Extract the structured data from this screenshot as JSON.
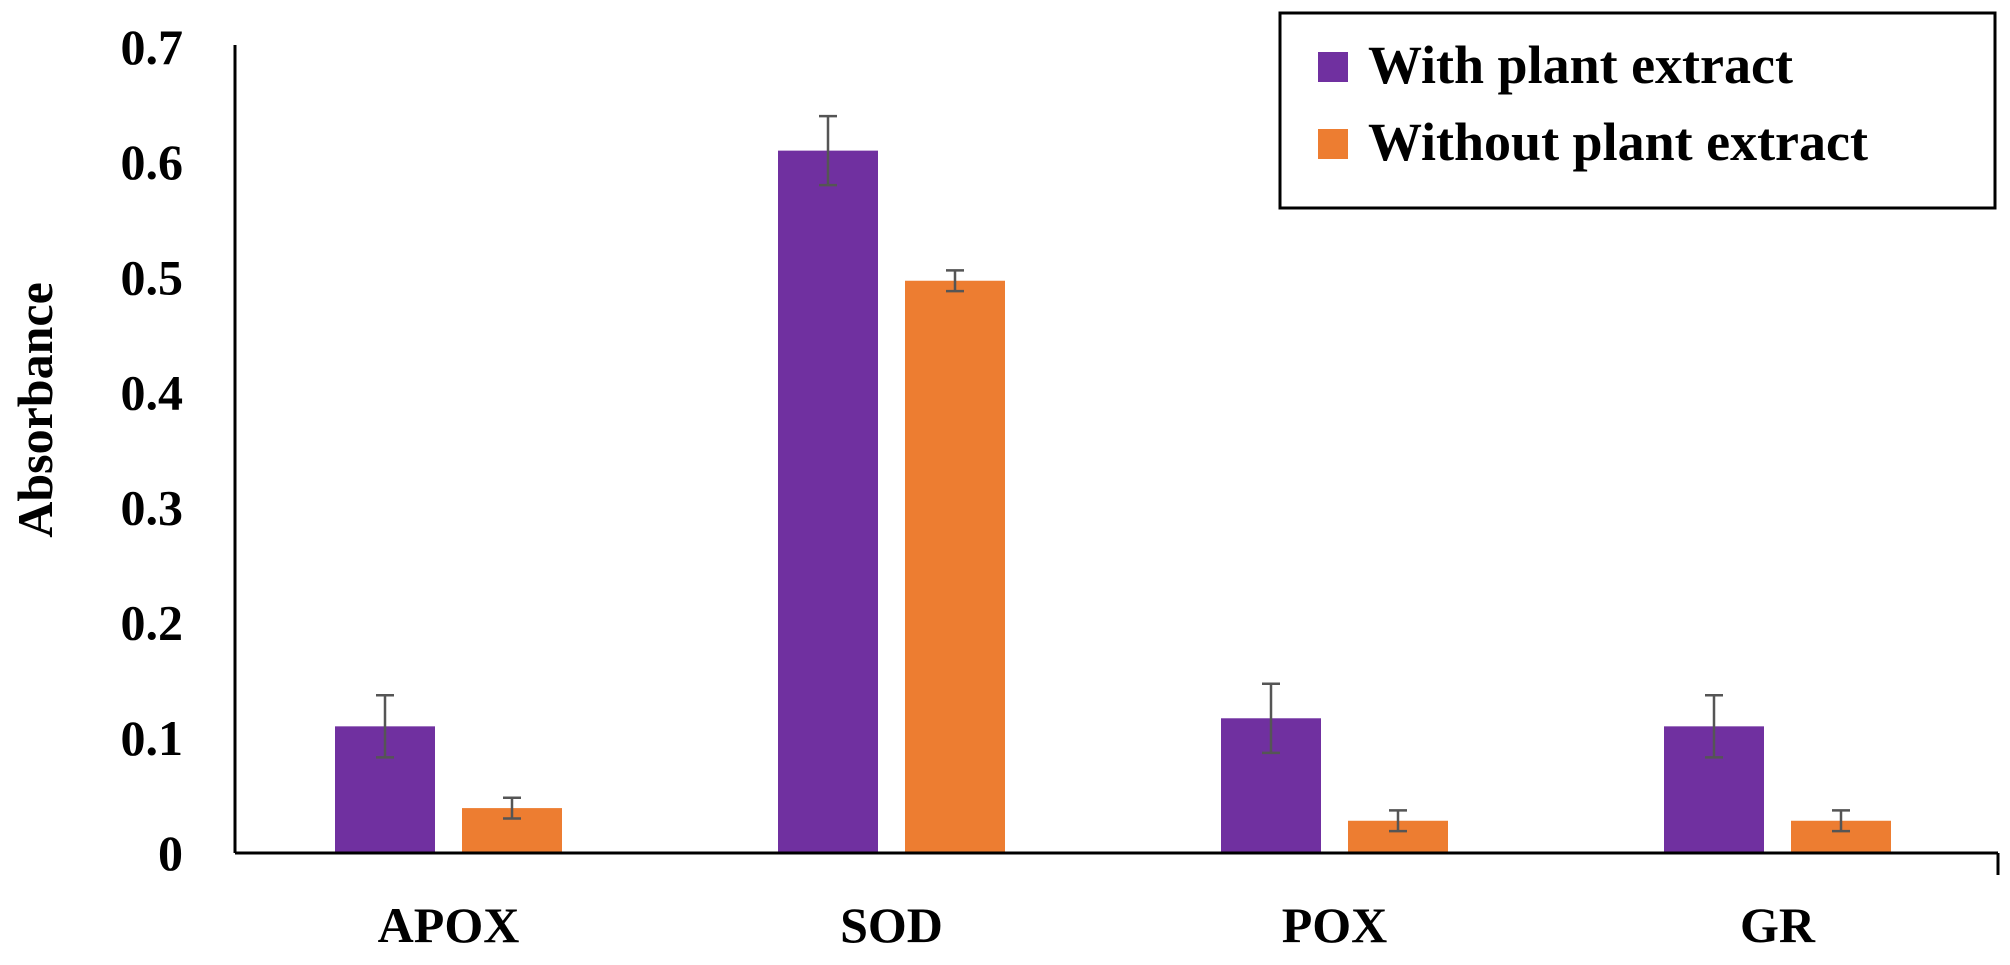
{
  "chart_data": {
    "type": "bar",
    "title": "",
    "xlabel": "",
    "ylabel": "Absorbance",
    "ylim": [
      0,
      0.7
    ],
    "yticks": [
      0,
      0.1,
      0.2,
      0.3,
      0.4,
      0.5,
      0.6,
      0.7
    ],
    "ytick_labels": [
      "0",
      "0.1",
      "0.2",
      "0.3",
      "0.4",
      "0.5",
      "0.6",
      "0.7"
    ],
    "categories": [
      "APOX",
      "SOD",
      "POX",
      "GR"
    ],
    "series": [
      {
        "name": "With plant extract",
        "color": "#7030A0",
        "values": [
          0.11,
          0.61,
          0.117,
          0.11
        ],
        "errors": [
          0.027,
          0.03,
          0.03,
          0.027
        ]
      },
      {
        "name": "Without plant extract",
        "color": "#ED7D31",
        "values": [
          0.039,
          0.497,
          0.028,
          0.028
        ],
        "errors": [
          0.009,
          0.009,
          0.009,
          0.009
        ]
      }
    ],
    "legend_position": "top-right",
    "grid": false
  }
}
